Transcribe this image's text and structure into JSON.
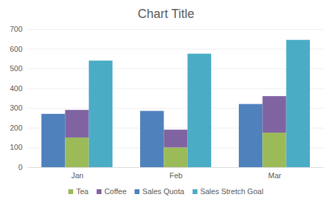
{
  "chart_data": {
    "type": "bar",
    "title": "Chart Title",
    "categories": [
      "Jan",
      "Feb",
      "Mar"
    ],
    "series": [
      {
        "name": "Sales Quota",
        "color": "#4f81bd",
        "values": [
          270,
          285,
          320
        ]
      },
      {
        "name": "Tea",
        "color": "#9bbb59",
        "stacked": true,
        "values": [
          150,
          100,
          175
        ]
      },
      {
        "name": "Coffee",
        "color": "#8064a2",
        "stacked": true,
        "values": [
          140,
          90,
          185
        ]
      },
      {
        "name": "Sales Stretch Goal",
        "color": "#4bacc6",
        "values": [
          540,
          575,
          645
        ]
      }
    ],
    "ylim": [
      0,
      700
    ],
    "yticks": [
      0,
      100,
      200,
      300,
      400,
      500,
      600,
      700
    ],
    "grid": true,
    "legend": "bottom"
  }
}
